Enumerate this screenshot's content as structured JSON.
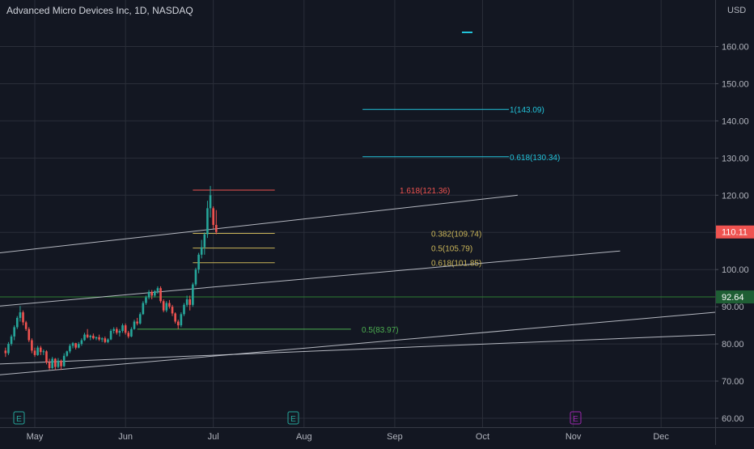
{
  "header": {
    "title": "Advanced Micro Devices Inc, 1D, NASDAQ",
    "currency": "USD"
  },
  "colors": {
    "background": "#131722",
    "up": "#26a69a",
    "down": "#ef5350",
    "grid": "#2a2e39",
    "axis_text": "#b2b5be",
    "channel": "#d1d4dc",
    "fib_gold": "#c9b458",
    "fib_cyan": "#22c3da",
    "support_green": "#4caf50",
    "earnings_badge": "#26a69a",
    "event_badge": "#9c27b0"
  },
  "chart_data": {
    "type": "candlestick",
    "title": "Advanced Micro Devices Inc, 1D, NASDAQ",
    "ylabel": "USD",
    "ylim": [
      57,
      169
    ],
    "grid": true,
    "y_ticks": [
      60,
      70,
      80,
      90,
      100,
      110,
      120,
      130,
      140,
      150,
      160
    ],
    "y_tick_labels": [
      "60.00",
      "70.00",
      "80.00",
      "90.00",
      "100.00",
      "110.00",
      "120.00",
      "130.00",
      "140.00",
      "150.00",
      "160.00"
    ],
    "x_ticks": [
      {
        "label": "May",
        "day": 0
      },
      {
        "label": "Jun",
        "day": 31
      },
      {
        "label": "Jul",
        "day": 61
      },
      {
        "label": "Aug",
        "day": 92
      },
      {
        "label": "Sep",
        "day": 123
      },
      {
        "label": "Oct",
        "day": 153
      },
      {
        "label": "Nov",
        "day": 184
      },
      {
        "label": "Dec",
        "day": 214
      }
    ],
    "candles": [
      [
        -10,
        78.2,
        79.0,
        76.5,
        77.5
      ],
      [
        -9,
        77.5,
        80.5,
        77.0,
        80.0
      ],
      [
        -8,
        80.0,
        82.5,
        79.5,
        82.0
      ],
      [
        -7,
        82.0,
        85.0,
        81.0,
        84.5
      ],
      [
        -6,
        84.5,
        87.5,
        84.0,
        87.0
      ],
      [
        -5,
        87.0,
        90.2,
        86.0,
        88.5
      ],
      [
        -4,
        88.5,
        89.0,
        85.0,
        85.8
      ],
      [
        -3,
        85.8,
        86.2,
        83.5,
        84.0
      ],
      [
        -2,
        84.0,
        84.5,
        80.5,
        81.0
      ],
      [
        -1,
        81.0,
        81.5,
        77.5,
        78.2
      ],
      [
        0,
        78.2,
        79.0,
        76.5,
        77.0
      ],
      [
        1,
        77.0,
        79.5,
        76.8,
        79.0
      ],
      [
        2,
        79.0,
        79.5,
        77.0,
        77.8
      ],
      [
        3,
        77.8,
        78.5,
        77.0,
        78.0
      ],
      [
        4,
        78.0,
        78.3,
        74.5,
        75.0
      ],
      [
        5,
        75.0,
        76.0,
        73.0,
        73.5
      ],
      [
        6,
        73.5,
        76.5,
        73.2,
        76.0
      ],
      [
        7,
        76.0,
        76.2,
        73.0,
        73.8
      ],
      [
        8,
        73.8,
        76.2,
        73.5,
        75.5
      ],
      [
        9,
        75.5,
        75.8,
        73.0,
        74.0
      ],
      [
        10,
        74.0,
        77.5,
        73.8,
        76.8
      ],
      [
        11,
        76.8,
        78.2,
        76.5,
        78.0
      ],
      [
        12,
        78.0,
        80.0,
        77.5,
        79.5
      ],
      [
        13,
        79.5,
        80.5,
        78.8,
        80.2
      ],
      [
        14,
        80.2,
        80.3,
        78.5,
        79.0
      ],
      [
        15,
        79.0,
        80.5,
        78.8,
        80.0
      ],
      [
        16,
        80.0,
        81.5,
        79.5,
        81.0
      ],
      [
        17,
        81.0,
        83.0,
        80.8,
        82.5
      ],
      [
        18,
        82.5,
        84.0,
        81.5,
        81.8
      ],
      [
        19,
        81.8,
        82.5,
        81.0,
        82.2
      ],
      [
        20,
        82.2,
        82.8,
        81.2,
        81.5
      ],
      [
        21,
        81.5,
        82.0,
        81.0,
        81.8
      ],
      [
        22,
        81.8,
        82.5,
        80.8,
        81.2
      ],
      [
        23,
        81.2,
        81.8,
        80.5,
        81.5
      ],
      [
        24,
        81.5,
        82.0,
        80.2,
        80.5
      ],
      [
        25,
        80.5,
        81.5,
        80.2,
        81.2
      ],
      [
        26,
        81.2,
        84.0,
        81.0,
        83.5
      ],
      [
        27,
        83.5,
        84.5,
        82.8,
        84.0
      ],
      [
        28,
        84.0,
        84.5,
        82.5,
        83.0
      ],
      [
        29,
        83.0,
        84.0,
        82.0,
        83.5
      ],
      [
        30,
        83.5,
        85.5,
        83.0,
        85.0
      ],
      [
        31,
        85.0,
        85.5,
        82.5,
        83.0
      ],
      [
        32,
        83.0,
        83.5,
        81.5,
        82.0
      ],
      [
        33,
        82.0,
        84.5,
        81.8,
        84.0
      ],
      [
        34,
        84.0,
        86.5,
        83.8,
        86.0
      ],
      [
        35,
        86.0,
        87.0,
        85.0,
        85.5
      ],
      [
        36,
        85.5,
        88.5,
        85.2,
        88.0
      ],
      [
        37,
        88.0,
        91.5,
        87.8,
        91.0
      ],
      [
        38,
        91.0,
        93.0,
        90.5,
        92.5
      ],
      [
        39,
        92.5,
        94.5,
        92.0,
        94.0
      ],
      [
        40,
        94.0,
        94.5,
        92.0,
        93.0
      ],
      [
        41,
        93.0,
        94.5,
        92.5,
        94.2
      ],
      [
        42,
        94.2,
        95.5,
        93.5,
        95.0
      ],
      [
        43,
        95.0,
        95.5,
        91.0,
        91.5
      ],
      [
        44,
        91.5,
        92.0,
        88.5,
        89.0
      ],
      [
        45,
        89.0,
        91.5,
        88.5,
        91.0
      ],
      [
        46,
        91.0,
        91.8,
        89.5,
        90.0
      ],
      [
        47,
        90.0,
        90.5,
        87.5,
        88.2
      ],
      [
        48,
        88.2,
        88.5,
        85.5,
        86.0
      ],
      [
        49,
        86.0,
        86.5,
        84.0,
        85.0
      ],
      [
        50,
        85.0,
        88.5,
        84.5,
        88.0
      ],
      [
        51,
        88.0,
        91.0,
        87.5,
        90.5
      ],
      [
        52,
        90.5,
        93.0,
        90.0,
        92.0
      ],
      [
        53,
        92.0,
        93.0,
        89.0,
        90.5
      ],
      [
        54,
        90.5,
        96.5,
        90.0,
        96.0
      ],
      [
        55,
        96.0,
        100.5,
        95.5,
        100.0
      ],
      [
        56,
        100.0,
        104.5,
        99.0,
        104.0
      ],
      [
        57,
        104.0,
        108.0,
        103.0,
        106.0
      ],
      [
        58,
        106.0,
        110.0,
        104.0,
        109.5
      ],
      [
        59,
        109.5,
        118.5,
        108.5,
        116.5
      ],
      [
        60,
        116.5,
        122.5,
        114.0,
        120.0
      ],
      [
        61,
        116.5,
        117.0,
        111.0,
        112.0
      ],
      [
        62,
        112.0,
        116.0,
        109.5,
        110.11
      ]
    ],
    "drawings": {
      "fib_levels": [
        {
          "label": "1.618(121.36)",
          "value": 121.36,
          "color": "#ef5350"
        },
        {
          "label": "0.382(109.74)",
          "value": 109.74,
          "color": "#c9b458"
        },
        {
          "label": "0.5(105.79)",
          "value": 105.79,
          "color": "#c9b458"
        },
        {
          "label": "0.618(101.85)",
          "value": 101.85,
          "color": "#c9b458"
        },
        {
          "label": "0.5(83.97)",
          "value": 83.97,
          "color": "#4caf50"
        },
        {
          "label": "1(143.09)",
          "value": 143.09,
          "color": "#22c3da"
        },
        {
          "label": "0.618(130.34)",
          "value": 130.34,
          "color": "#22c3da"
        }
      ],
      "horizontal_support": 92.64
    },
    "price_labels": [
      {
        "label": "110.11",
        "value": 110.11,
        "color": "#ef5350"
      },
      {
        "label": "92.64",
        "value": 92.64,
        "color": "#1e5e34"
      }
    ],
    "event_badges": [
      {
        "label": "E",
        "kind": "earnings"
      },
      {
        "label": "E",
        "kind": "earnings"
      },
      {
        "label": "E",
        "kind": "event"
      }
    ]
  }
}
